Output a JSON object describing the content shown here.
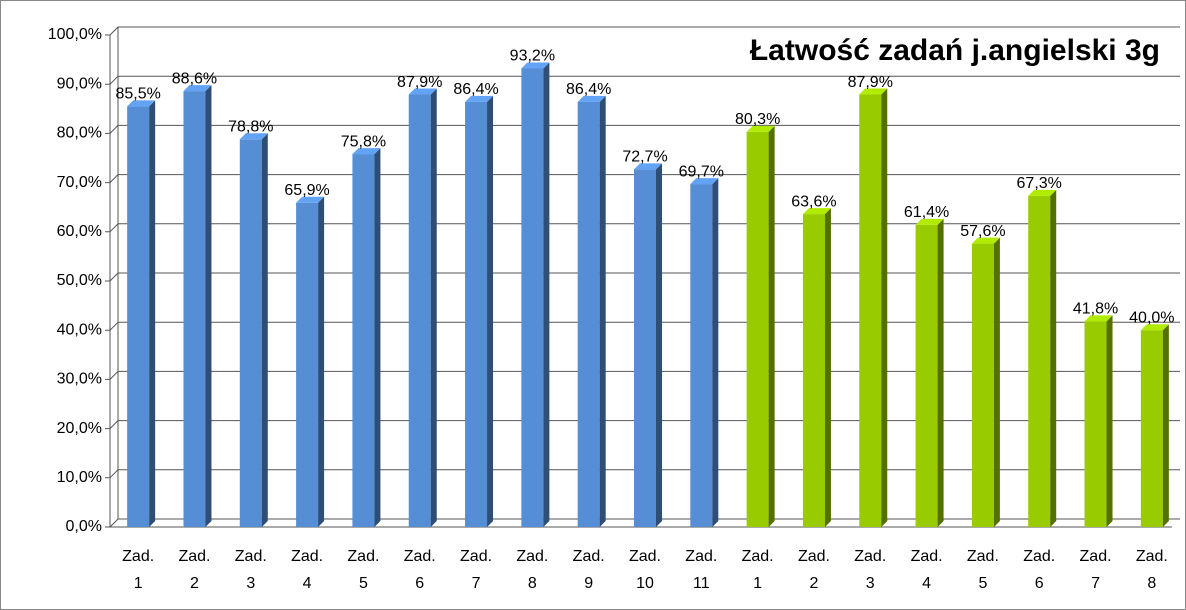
{
  "chart_data": {
    "type": "bar3d",
    "title": "Łatwość zadań j.angielski 3g",
    "categories": [
      "Zad. 1",
      "Zad. 2",
      "Zad. 3",
      "Zad. 4",
      "Zad. 5",
      "Zad. 6",
      "Zad. 7",
      "Zad. 8",
      "Zad. 9",
      "Zad. 10",
      "Zad. 11",
      "Zad. 1",
      "Zad. 2",
      "Zad. 3",
      "Zad. 4",
      "Zad. 5",
      "Zad. 6",
      "Zad. 7",
      "Zad. 8"
    ],
    "values": [
      85.5,
      88.6,
      78.8,
      65.9,
      75.8,
      87.9,
      86.4,
      93.2,
      86.4,
      72.7,
      69.7,
      80.3,
      63.6,
      87.9,
      61.4,
      57.6,
      67.3,
      41.8,
      40.0
    ],
    "value_labels": [
      "85,5%",
      "88,6%",
      "78,8%",
      "65,9%",
      "75,8%",
      "87,9%",
      "86,4%",
      "93,2%",
      "86,4%",
      "72,7%",
      "69,7%",
      "80,3%",
      "63,6%",
      "87,9%",
      "61,4%",
      "57,6%",
      "67,3%",
      "41,8%",
      "40,0%"
    ],
    "colors": [
      "#558ed5",
      "#558ed5",
      "#558ed5",
      "#558ed5",
      "#558ed5",
      "#558ed5",
      "#558ed5",
      "#558ed5",
      "#558ed5",
      "#558ed5",
      "#558ed5",
      "#99cc00",
      "#99cc00",
      "#99cc00",
      "#99cc00",
      "#99cc00",
      "#99cc00",
      "#99cc00",
      "#99cc00"
    ],
    "ylim": [
      0,
      100
    ],
    "yticks": [
      {
        "value": 0,
        "label": "0,0%"
      },
      {
        "value": 10,
        "label": "10,0%"
      },
      {
        "value": 20,
        "label": "20,0%"
      },
      {
        "value": 30,
        "label": "30,0%"
      },
      {
        "value": 40,
        "label": "40,0%"
      },
      {
        "value": 50,
        "label": "50,0%"
      },
      {
        "value": 60,
        "label": "60,0%"
      },
      {
        "value": 70,
        "label": "70,0%"
      },
      {
        "value": 80,
        "label": "80,0%"
      },
      {
        "value": 90,
        "label": "90,0%"
      },
      {
        "value": 100,
        "label": "100,0%"
      }
    ],
    "grid": true
  }
}
